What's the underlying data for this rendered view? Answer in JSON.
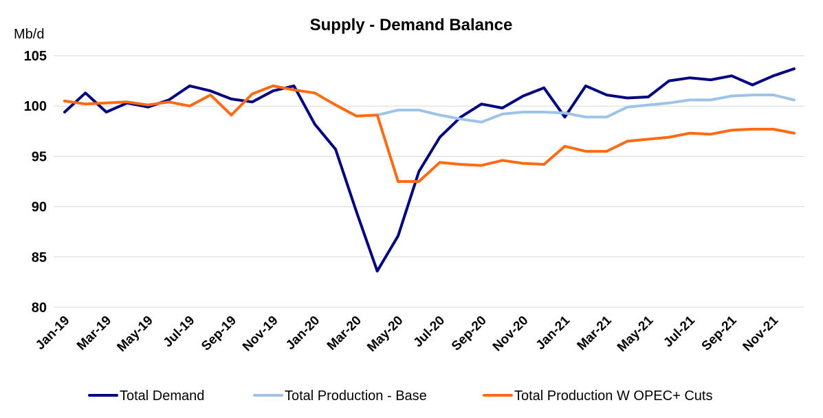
{
  "chart_data": {
    "type": "line",
    "title": "Supply - Demand Balance",
    "unit_label": "Mb/d",
    "ylim": [
      80,
      105
    ],
    "yticks": [
      80,
      85,
      90,
      95,
      100,
      105
    ],
    "grid": "horizontal",
    "legend_position": "bottom",
    "x": [
      "Jan-19",
      "Feb-19",
      "Mar-19",
      "Apr-19",
      "May-19",
      "Jun-19",
      "Jul-19",
      "Aug-19",
      "Sep-19",
      "Oct-19",
      "Nov-19",
      "Dec-19",
      "Jan-20",
      "Feb-20",
      "Mar-20",
      "Apr-20",
      "May-20",
      "Jun-20",
      "Jul-20",
      "Aug-20",
      "Sep-20",
      "Oct-20",
      "Nov-20",
      "Dec-20",
      "Jan-21",
      "Feb-21",
      "Mar-21",
      "Apr-21",
      "May-21",
      "Jun-21",
      "Jul-21",
      "Aug-21",
      "Sep-21",
      "Oct-21",
      "Nov-21",
      "Dec-21"
    ],
    "x_tick_labels": [
      "Jan-19",
      "Mar-19",
      "May-19",
      "Jul-19",
      "Sep-19",
      "Nov-19",
      "Jan-20",
      "Mar-20",
      "May-20",
      "Jul-20",
      "Sep-20",
      "Nov-20",
      "Jan-21",
      "Mar-21",
      "May-21",
      "Jul-21",
      "Sep-21",
      "Nov-21"
    ],
    "series": [
      {
        "name": "Total Demand",
        "color": "#000080",
        "values": [
          99.4,
          101.3,
          99.4,
          100.3,
          99.9,
          100.6,
          102.0,
          101.5,
          100.7,
          100.4,
          101.5,
          102.0,
          98.2,
          95.7,
          89.5,
          83.6,
          87.1,
          93.5,
          96.9,
          98.9,
          100.2,
          99.8,
          101.0,
          101.8,
          98.9,
          102.0,
          101.1,
          100.8,
          100.9,
          102.5,
          102.8,
          102.6,
          103.0,
          102.1,
          103.0,
          103.7
        ]
      },
      {
        "name": "Total Production - Base",
        "color": "#9dc3e6",
        "values": [
          null,
          null,
          null,
          null,
          null,
          null,
          null,
          null,
          null,
          null,
          null,
          null,
          null,
          null,
          null,
          99.1,
          99.6,
          99.6,
          99.1,
          98.7,
          98.4,
          99.2,
          99.4,
          99.4,
          99.3,
          98.9,
          98.9,
          99.9,
          100.1,
          100.3,
          100.6,
          100.6,
          101.0,
          101.1,
          101.1,
          100.6
        ]
      },
      {
        "name": "Total Production W OPEC+ Cuts",
        "color": "#ff6a13",
        "values": [
          100.5,
          100.2,
          100.3,
          100.4,
          100.1,
          100.4,
          100.0,
          101.1,
          99.1,
          101.2,
          102.0,
          101.6,
          101.3,
          100.1,
          99.0,
          99.1,
          92.5,
          92.5,
          94.4,
          94.2,
          94.1,
          94.6,
          94.3,
          94.2,
          96.0,
          95.5,
          95.5,
          96.5,
          96.7,
          96.9,
          97.3,
          97.2,
          97.6,
          97.7,
          97.7,
          97.3
        ]
      }
    ]
  }
}
